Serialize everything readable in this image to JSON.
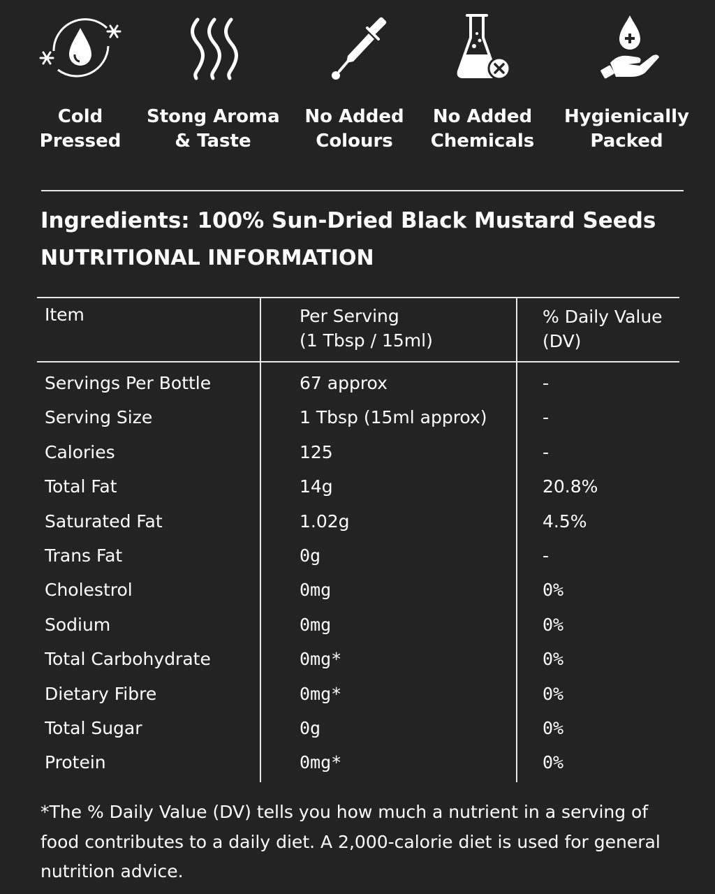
{
  "features": [
    {
      "icon": "cold-drop-snowflake-icon",
      "line1": "Cold",
      "line2": "Pressed"
    },
    {
      "icon": "aroma-waves-icon",
      "line1": "Stong Aroma",
      "line2": "& Taste"
    },
    {
      "icon": "dropper-icon",
      "line1": "No Added",
      "line2": "Colours"
    },
    {
      "icon": "flask-x-icon",
      "line1": "No Added",
      "line2": "Chemicals"
    },
    {
      "icon": "hand-drop-plus-icon",
      "line1": "Hygienically",
      "line2": "Packed"
    }
  ],
  "ingredients": "Ingredients: 100% Sun-Dried Black Mustard Seeds",
  "nutrition_title": "NUTRITIONAL INFORMATION",
  "table": {
    "headers": {
      "item": "Item",
      "per_serving_1": "Per Serving",
      "per_serving_2": "(1 Tbsp / 15ml)",
      "dv_1": "% Daily Value",
      "dv_2": "(DV)"
    },
    "rows": [
      {
        "item": "Servings Per Bottle",
        "per": "67 approx",
        "dv": "-"
      },
      {
        "item": "Serving Size",
        "per": "1 Tbsp (15ml approx)",
        "dv": "-"
      },
      {
        "item": "Calories",
        "per": "125",
        "dv": "-"
      },
      {
        "item": "Total Fat",
        "per": "14g",
        "dv": "20.8%"
      },
      {
        "item": "Saturated Fat",
        "per": "1.02g",
        "dv": "4.5%"
      },
      {
        "item": "Trans Fat",
        "per": "0g",
        "dv": "-"
      },
      {
        "item": "Cholestrol",
        "per": "0mg",
        "dv": "0%"
      },
      {
        "item": "Sodium",
        "per": "0mg",
        "dv": "0%"
      },
      {
        "item": "Total Carbohydrate",
        "per": "0mg*",
        "dv": "0%"
      },
      {
        "item": "Dietary Fibre",
        "per": "0mg*",
        "dv": "0%"
      },
      {
        "item": "Total Sugar",
        "per": "0g",
        "dv": "0%"
      },
      {
        "item": "Protein",
        "per": "0mg*",
        "dv": "0%"
      }
    ]
  },
  "footnote": "*The % Daily Value (DV) tells you how much a nutrient in a serving of food contributes to a daily diet. A 2,000-calorie diet is used for general nutrition advice."
}
